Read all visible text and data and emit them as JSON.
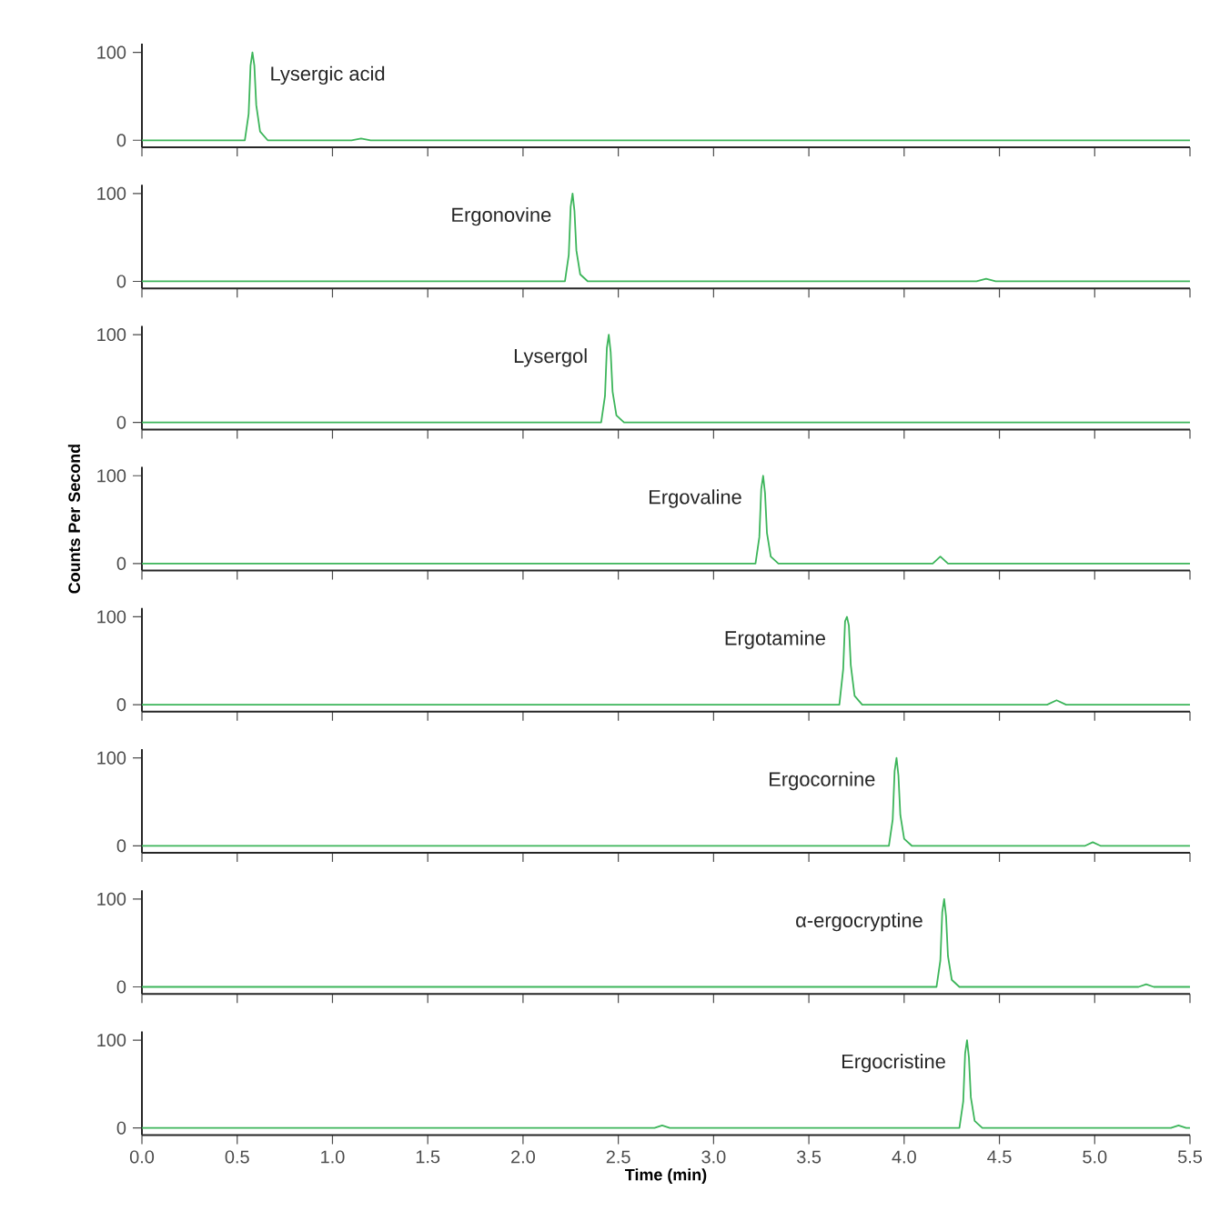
{
  "chart_data": [
    {
      "type": "line",
      "xlim": [
        0,
        5.5
      ],
      "ylim": [
        -8,
        110
      ],
      "yticks": [
        0,
        100
      ],
      "tick_labels": "y",
      "xticks": [
        0,
        0.5,
        1,
        1.5,
        2,
        2.5,
        3,
        3.5,
        4,
        4.5,
        5,
        5.5
      ],
      "series": [
        {
          "color": "#3cb55a",
          "x": [
            0,
            0.54,
            0.56,
            0.57,
            0.58,
            0.59,
            0.6,
            0.62,
            0.66,
            1.1,
            1.15,
            1.2,
            5.5
          ],
          "values": [
            0,
            0,
            30,
            85,
            100,
            85,
            40,
            10,
            0,
            0,
            2,
            0,
            0
          ]
        }
      ],
      "annotations": [
        {
          "text": "Lysergic acid",
          "x": 0.58,
          "y": 100
        }
      ]
    },
    {
      "type": "line",
      "xlim": [
        0,
        5.5
      ],
      "ylim": [
        -8,
        110
      ],
      "yticks": [
        0,
        100
      ],
      "tick_labels": "y",
      "xticks": [
        0,
        0.5,
        1,
        1.5,
        2,
        2.5,
        3,
        3.5,
        4,
        4.5,
        5,
        5.5
      ],
      "series": [
        {
          "color": "#3cb55a",
          "x": [
            0,
            2.22,
            2.24,
            2.25,
            2.26,
            2.27,
            2.28,
            2.3,
            2.34,
            4.38,
            4.43,
            4.48,
            5.5
          ],
          "values": [
            0,
            0,
            30,
            85,
            100,
            80,
            35,
            8,
            0,
            0,
            3,
            0,
            0
          ]
        }
      ],
      "annotations": [
        {
          "text": "Ergonovine",
          "x": 2.26,
          "y": 100
        }
      ]
    },
    {
      "type": "line",
      "xlim": [
        0,
        5.5
      ],
      "ylim": [
        -8,
        110
      ],
      "yticks": [
        0,
        100
      ],
      "tick_labels": "y",
      "xticks": [
        0,
        0.5,
        1,
        1.5,
        2,
        2.5,
        3,
        3.5,
        4,
        4.5,
        5,
        5.5
      ],
      "series": [
        {
          "color": "#3cb55a",
          "x": [
            0,
            2.41,
            2.43,
            2.44,
            2.45,
            2.46,
            2.47,
            2.49,
            2.53,
            5.5
          ],
          "values": [
            0,
            0,
            30,
            85,
            100,
            80,
            35,
            8,
            0,
            0
          ]
        }
      ],
      "annotations": [
        {
          "text": "Lysergol",
          "x": 2.45,
          "y": 100
        }
      ]
    },
    {
      "type": "line",
      "xlim": [
        0,
        5.5
      ],
      "ylim": [
        -8,
        110
      ],
      "yticks": [
        0,
        100
      ],
      "tick_labels": "y",
      "ylabel": "Counts Per Second",
      "xticks": [
        0,
        0.5,
        1,
        1.5,
        2,
        2.5,
        3,
        3.5,
        4,
        4.5,
        5,
        5.5
      ],
      "series": [
        {
          "color": "#3cb55a",
          "x": [
            0,
            3.22,
            3.24,
            3.25,
            3.26,
            3.27,
            3.28,
            3.3,
            3.34,
            4.15,
            4.19,
            4.23,
            5.5
          ],
          "values": [
            0,
            0,
            30,
            85,
            100,
            80,
            35,
            8,
            0,
            0,
            8,
            0,
            0
          ]
        }
      ],
      "annotations": [
        {
          "text": "Ergovaline",
          "x": 3.26,
          "y": 100
        }
      ]
    },
    {
      "type": "line",
      "xlim": [
        0,
        5.5
      ],
      "ylim": [
        -8,
        110
      ],
      "yticks": [
        0,
        100
      ],
      "tick_labels": "y",
      "xticks": [
        0,
        0.5,
        1,
        1.5,
        2,
        2.5,
        3,
        3.5,
        4,
        4.5,
        5,
        5.5
      ],
      "series": [
        {
          "color": "#3cb55a",
          "x": [
            0,
            3.66,
            3.68,
            3.69,
            3.7,
            3.71,
            3.72,
            3.74,
            3.78,
            4.75,
            4.8,
            4.85,
            5.5
          ],
          "values": [
            0,
            0,
            40,
            95,
            100,
            90,
            45,
            10,
            0,
            0,
            5,
            0,
            0
          ]
        }
      ],
      "annotations": [
        {
          "text": "Ergotamine",
          "x": 3.7,
          "y": 100
        }
      ]
    },
    {
      "type": "line",
      "xlim": [
        0,
        5.5
      ],
      "ylim": [
        -8,
        110
      ],
      "yticks": [
        0,
        100
      ],
      "tick_labels": "y",
      "xticks": [
        0,
        0.5,
        1,
        1.5,
        2,
        2.5,
        3,
        3.5,
        4,
        4.5,
        5,
        5.5
      ],
      "series": [
        {
          "color": "#3cb55a",
          "x": [
            0,
            3.92,
            3.94,
            3.95,
            3.96,
            3.97,
            3.98,
            4.0,
            4.04,
            4.95,
            4.99,
            5.03,
            5.5
          ],
          "values": [
            0,
            0,
            30,
            85,
            100,
            80,
            35,
            8,
            0,
            0,
            4,
            0,
            0
          ]
        }
      ],
      "annotations": [
        {
          "text": "Ergocornine",
          "x": 3.96,
          "y": 100
        }
      ]
    },
    {
      "type": "line",
      "xlim": [
        0,
        5.5
      ],
      "ylim": [
        -8,
        110
      ],
      "yticks": [
        0,
        100
      ],
      "tick_labels": "y",
      "xticks": [
        0,
        0.5,
        1,
        1.5,
        2,
        2.5,
        3,
        3.5,
        4,
        4.5,
        5,
        5.5
      ],
      "series": [
        {
          "color": "#3cb55a",
          "x": [
            0,
            4.17,
            4.19,
            4.2,
            4.21,
            4.22,
            4.23,
            4.25,
            4.29,
            5.23,
            5.27,
            5.31,
            5.5
          ],
          "values": [
            0,
            0,
            30,
            85,
            100,
            80,
            35,
            8,
            0,
            0,
            3,
            0,
            0
          ]
        }
      ],
      "annotations": [
        {
          "text": "α-ergocryptine",
          "x": 4.21,
          "y": 100
        }
      ]
    },
    {
      "type": "line",
      "xlim": [
        0,
        5.5
      ],
      "ylim": [
        -8,
        110
      ],
      "yticks": [
        0,
        100
      ],
      "xlabel": "Time (min)",
      "xticks": [
        {
          "value": 0,
          "label": "0.0"
        },
        0.5,
        {
          "value": 1,
          "label": "1.0"
        },
        1.5,
        {
          "value": 2,
          "label": "2.0"
        },
        2.5,
        {
          "value": 3,
          "label": "3.0"
        },
        3.5,
        {
          "value": 4,
          "label": "4.0"
        },
        4.5,
        {
          "value": 5,
          "label": "5.0"
        },
        5.5
      ],
      "series": [
        {
          "color": "#3cb55a",
          "x": [
            0,
            2.69,
            2.73,
            2.77,
            4.29,
            4.31,
            4.32,
            4.33,
            4.34,
            4.35,
            4.37,
            4.41,
            5.4,
            5.44,
            5.48,
            5.5
          ],
          "values": [
            0,
            0,
            3,
            0,
            0,
            30,
            85,
            100,
            80,
            35,
            8,
            0,
            0,
            3,
            0,
            0
          ]
        }
      ],
      "annotations": [
        {
          "text": "Ergocristine",
          "x": 4.33,
          "y": 100
        }
      ]
    }
  ]
}
